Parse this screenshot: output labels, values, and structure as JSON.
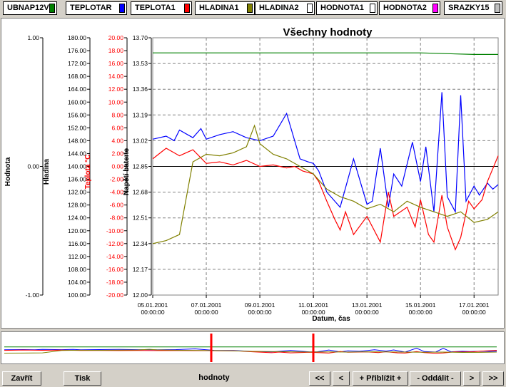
{
  "tabs": [
    {
      "label": "UBNAP12V",
      "color": "#008000"
    },
    {
      "label": "TEPLOTAR",
      "color": "#0000ff"
    },
    {
      "label": "TEPLOTA1",
      "color": "#ff0000"
    },
    {
      "label": "HLADINA1",
      "color": "#808000"
    },
    {
      "label": "HLADINA2",
      "color": "#ffffff"
    },
    {
      "label": "HODNOTA1",
      "color": "#ffffff"
    },
    {
      "label": "HODNOTA2",
      "color": "#ff00ff"
    },
    {
      "label": "SRAZKY15",
      "color": "#c0c0c0"
    }
  ],
  "chart_data": {
    "type": "line",
    "title": "Všechny hodnoty",
    "xlabel": "Datum, čas",
    "x_ticks": [
      "05.01.2001 00:00:00",
      "07.01.2001 00:00:00",
      "09.01.2001 00:00:00",
      "11.01.2001 00:00:00",
      "13.01.2001 00:00:00",
      "15.01.2001 00:00:00",
      "17.01.2001 00:00:00"
    ],
    "axes": [
      {
        "label": "Hodnota",
        "ticks": [
          "1.00",
          "0.00",
          "-1.00"
        ],
        "color": "#000000"
      },
      {
        "label": "Hladina",
        "ticks": [
          "180.00",
          "176.00",
          "172.00",
          "168.00",
          "164.00",
          "160.00",
          "156.00",
          "152.00",
          "148.00",
          "144.00",
          "140.00",
          "136.00",
          "132.00",
          "128.00",
          "124.00",
          "120.00",
          "116.00",
          "112.00",
          "108.00",
          "104.00",
          "100.00"
        ],
        "color": "#000000"
      },
      {
        "label": "Teplota °C",
        "ticks": [
          "20.00",
          "18.00",
          "16.00",
          "14.00",
          "12.00",
          "10.00",
          "8.00",
          "6.00",
          "4.00",
          "2.00",
          "0.00",
          "-2.00",
          "-4.00",
          "-6.00",
          "-8.00",
          "-10.00",
          "-12.00",
          "-14.00",
          "-16.00",
          "-18.00",
          "-20.00"
        ],
        "color": "#ff0000"
      },
      {
        "label": "Napětí baterie",
        "ticks": [
          "13.70",
          "13.53",
          "13.36",
          "13.19",
          "13.02",
          "12.85",
          "12.68",
          "12.51",
          "12.34",
          "12.17",
          "12.00"
        ],
        "color": "#000000"
      }
    ],
    "grid": true,
    "series": [
      {
        "name": "UBNAP12V",
        "color": "#008000",
        "x": [
          0,
          2,
          4,
          6,
          8,
          10,
          12,
          12.9
        ],
        "y": [
          13.6,
          13.6,
          13.6,
          13.6,
          13.6,
          13.6,
          13.59,
          13.59
        ]
      },
      {
        "name": "TEPLOTAR",
        "color": "#0000ff",
        "x": [
          0,
          0.5,
          0.8,
          1,
          1.5,
          1.8,
          2,
          2.5,
          3,
          3.5,
          4,
          4.5,
          5,
          5.5,
          5.8,
          6,
          6.2,
          6.5,
          7,
          7.5,
          8,
          8.2,
          8.5,
          8.8,
          9,
          9.3,
          9.7,
          10,
          10.2,
          10.5,
          10.8,
          11,
          11.3,
          11.5,
          11.7,
          12,
          12.2,
          12.5,
          12.7,
          12.9
        ],
        "y": [
          13.03,
          13.05,
          13.02,
          13.09,
          13.04,
          13.1,
          13.03,
          13.06,
          13.08,
          13.04,
          13.02,
          13.05,
          13.2,
          12.9,
          12.88,
          12.87,
          12.82,
          12.68,
          12.58,
          12.9,
          12.6,
          12.62,
          12.97,
          12.58,
          12.8,
          12.72,
          13.01,
          12.75,
          12.98,
          12.55,
          13.34,
          12.65,
          12.55,
          13.32,
          12.62,
          12.72,
          12.66,
          12.74,
          12.7,
          12.73
        ]
      },
      {
        "name": "TEPLOTA1",
        "color": "#ff0000",
        "x": [
          0,
          0.5,
          1,
          1.5,
          2,
          2.5,
          3,
          3.5,
          4,
          4.5,
          5,
          5.3,
          5.6,
          6,
          6.2,
          6.5,
          6.8,
          7,
          7.2,
          7.5,
          8,
          8.5,
          8.8,
          9,
          9.5,
          9.8,
          10,
          10.3,
          10.5,
          10.8,
          11,
          11.3,
          11.5,
          11.8,
          12,
          12.3,
          12.5,
          12.9
        ],
        "y": [
          12.9,
          12.97,
          12.92,
          12.96,
          12.87,
          12.88,
          12.86,
          12.89,
          12.85,
          12.86,
          12.84,
          12.85,
          12.82,
          12.8,
          12.75,
          12.62,
          12.5,
          12.43,
          12.55,
          12.4,
          12.52,
          12.35,
          12.68,
          12.52,
          12.58,
          12.45,
          12.63,
          12.4,
          12.35,
          12.66,
          12.45,
          12.3,
          12.38,
          12.62,
          12.57,
          12.63,
          12.75,
          12.92
        ]
      },
      {
        "name": "HLADINA1",
        "color": "#808000",
        "x": [
          0,
          0.5,
          1,
          1.5,
          2,
          2.5,
          3,
          3.5,
          3.8,
          4,
          4.5,
          5,
          5.5,
          6,
          6.5,
          7,
          7.5,
          8,
          8.5,
          9,
          9.5,
          10,
          10.5,
          11,
          11.5,
          12,
          12.5,
          12.9
        ],
        "y": [
          12.34,
          12.36,
          12.4,
          12.88,
          12.93,
          12.92,
          12.94,
          12.98,
          13.12,
          13.0,
          12.93,
          12.9,
          12.85,
          12.8,
          12.7,
          12.65,
          12.62,
          12.57,
          12.6,
          12.55,
          12.62,
          12.58,
          12.55,
          12.52,
          12.55,
          12.48,
          12.5,
          12.55
        ]
      }
    ]
  },
  "bottom": {
    "close_label": "Zavřít",
    "print_label": "Tisk",
    "name_label": "hodnoty",
    "first_label": "<<",
    "prev_label": "<",
    "zoom_in_label": "+ Přiblížit +",
    "zoom_out_label": "- Oddálit -",
    "next_label": ">",
    "last_label": ">>"
  }
}
